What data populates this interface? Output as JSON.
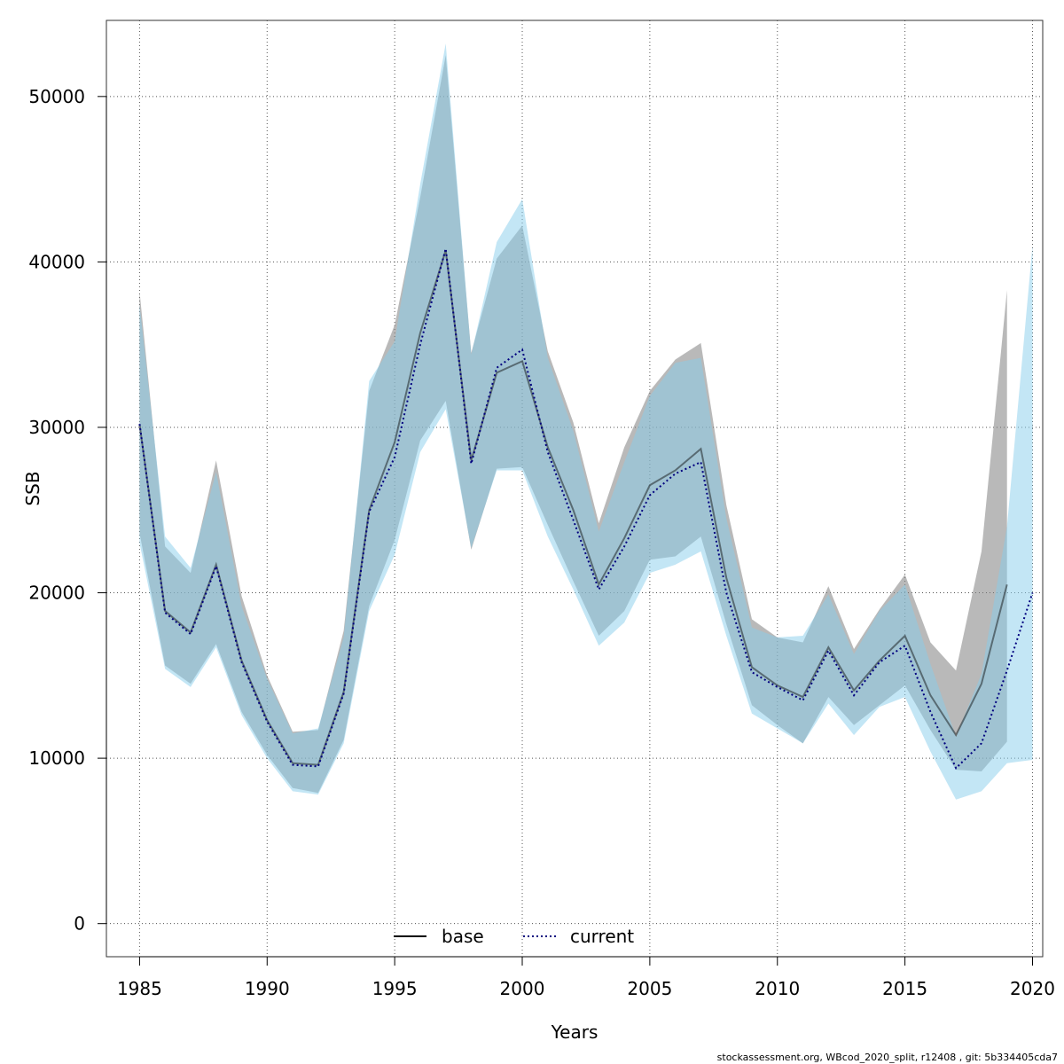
{
  "chart_data": {
    "type": "area",
    "xlabel": "Years",
    "ylabel": "SSB",
    "xlim": [
      1983.7,
      2020.4
    ],
    "ylim": [
      -2000,
      54600
    ],
    "x_ticks": [
      1985,
      1990,
      1995,
      2000,
      2005,
      2010,
      2015,
      2020
    ],
    "y_ticks": [
      0,
      10000,
      20000,
      30000,
      40000,
      50000
    ],
    "x_tick_labels": [
      "1985",
      "1990",
      "1995",
      "2000",
      "2005",
      "2010",
      "2015",
      "2020"
    ],
    "y_tick_labels": [
      "0",
      "10000",
      "20000",
      "30000",
      "40000",
      "50000"
    ],
    "grid": true,
    "legend_position": "bottom",
    "legend": [
      {
        "label": "base",
        "style": "solid",
        "color": "#000000"
      },
      {
        "label": "current",
        "style": "dotted",
        "color": "#00007f"
      }
    ],
    "series": [
      {
        "name": "base",
        "line_color": "#000000",
        "band_color": "#808080",
        "x": [
          1985,
          1986,
          1987,
          1988,
          1989,
          1990,
          1991,
          1992,
          1993,
          1994,
          1995,
          1996,
          1997,
          1998,
          1999,
          2000,
          2001,
          2002,
          2003,
          2004,
          2005,
          2006,
          2007,
          2008,
          2009,
          2010,
          2011,
          2012,
          2013,
          2014,
          2015,
          2016,
          2017,
          2018,
          2019
        ],
        "values": [
          30200,
          18900,
          17600,
          21700,
          15900,
          12300,
          9700,
          9600,
          14000,
          25000,
          29100,
          35700,
          40700,
          28000,
          33300,
          34000,
          28800,
          25000,
          20500,
          23300,
          26500,
          27400,
          28700,
          20900,
          15500,
          14400,
          13700,
          16700,
          14100,
          15900,
          17400,
          13800,
          11400,
          14500,
          20500
        ],
        "lower": [
          23600,
          15600,
          14500,
          16900,
          12800,
          10200,
          8200,
          7900,
          11100,
          19200,
          23200,
          29200,
          31600,
          22600,
          27500,
          27600,
          24100,
          20700,
          17400,
          18900,
          22000,
          22200,
          23400,
          18100,
          13200,
          12000,
          10900,
          13700,
          12000,
          13200,
          14400,
          11700,
          9300,
          9200,
          11000
        ],
        "upper": [
          38200,
          22800,
          21200,
          28000,
          19800,
          15000,
          11600,
          11700,
          17700,
          32200,
          36200,
          43900,
          52500,
          34500,
          40200,
          42200,
          34600,
          30300,
          24200,
          28800,
          32200,
          34100,
          35100,
          25300,
          18400,
          17300,
          17000,
          20400,
          16600,
          19000,
          21100,
          17000,
          15300,
          22500,
          38300
        ]
      },
      {
        "name": "current",
        "line_color": "#00007f",
        "band_color": "#87ceeb",
        "x": [
          1985,
          1986,
          1987,
          1988,
          1989,
          1990,
          1991,
          1992,
          1993,
          1994,
          1995,
          1996,
          1997,
          1998,
          1999,
          2000,
          2001,
          2002,
          2003,
          2004,
          2005,
          2006,
          2007,
          2008,
          2009,
          2010,
          2011,
          2012,
          2013,
          2014,
          2015,
          2016,
          2017,
          2018,
          2019,
          2020
        ],
        "values": [
          30200,
          18800,
          17500,
          21600,
          15800,
          12200,
          9600,
          9500,
          13900,
          24900,
          28200,
          35000,
          40800,
          27800,
          33600,
          34700,
          28500,
          24400,
          20200,
          22800,
          25900,
          27200,
          27900,
          20000,
          15200,
          14300,
          13500,
          16500,
          13800,
          15800,
          16800,
          12800,
          9400,
          10900,
          15300,
          20000
        ],
        "lower": [
          23000,
          15400,
          14300,
          16700,
          12600,
          10000,
          8000,
          7800,
          10900,
          18900,
          22300,
          28500,
          31100,
          22700,
          27400,
          27400,
          23400,
          20200,
          16800,
          18200,
          21200,
          21700,
          22500,
          17400,
          12700,
          11800,
          10900,
          13300,
          11400,
          13100,
          13700,
          10400,
          7500,
          8000,
          9700,
          9900
        ],
        "upper": [
          37400,
          23400,
          21500,
          27300,
          19200,
          14800,
          11500,
          11800,
          17300,
          32800,
          35200,
          44700,
          53200,
          34400,
          41200,
          43800,
          34200,
          29800,
          23700,
          27900,
          31900,
          33900,
          34200,
          24500,
          17900,
          17300,
          17400,
          19900,
          16300,
          18900,
          20500,
          15700,
          11300,
          15100,
          24000,
          41000
        ]
      }
    ],
    "footer_note": "stockassessment.org, WBcod_2020_split, r12408 , git: 5b334405cda7"
  }
}
